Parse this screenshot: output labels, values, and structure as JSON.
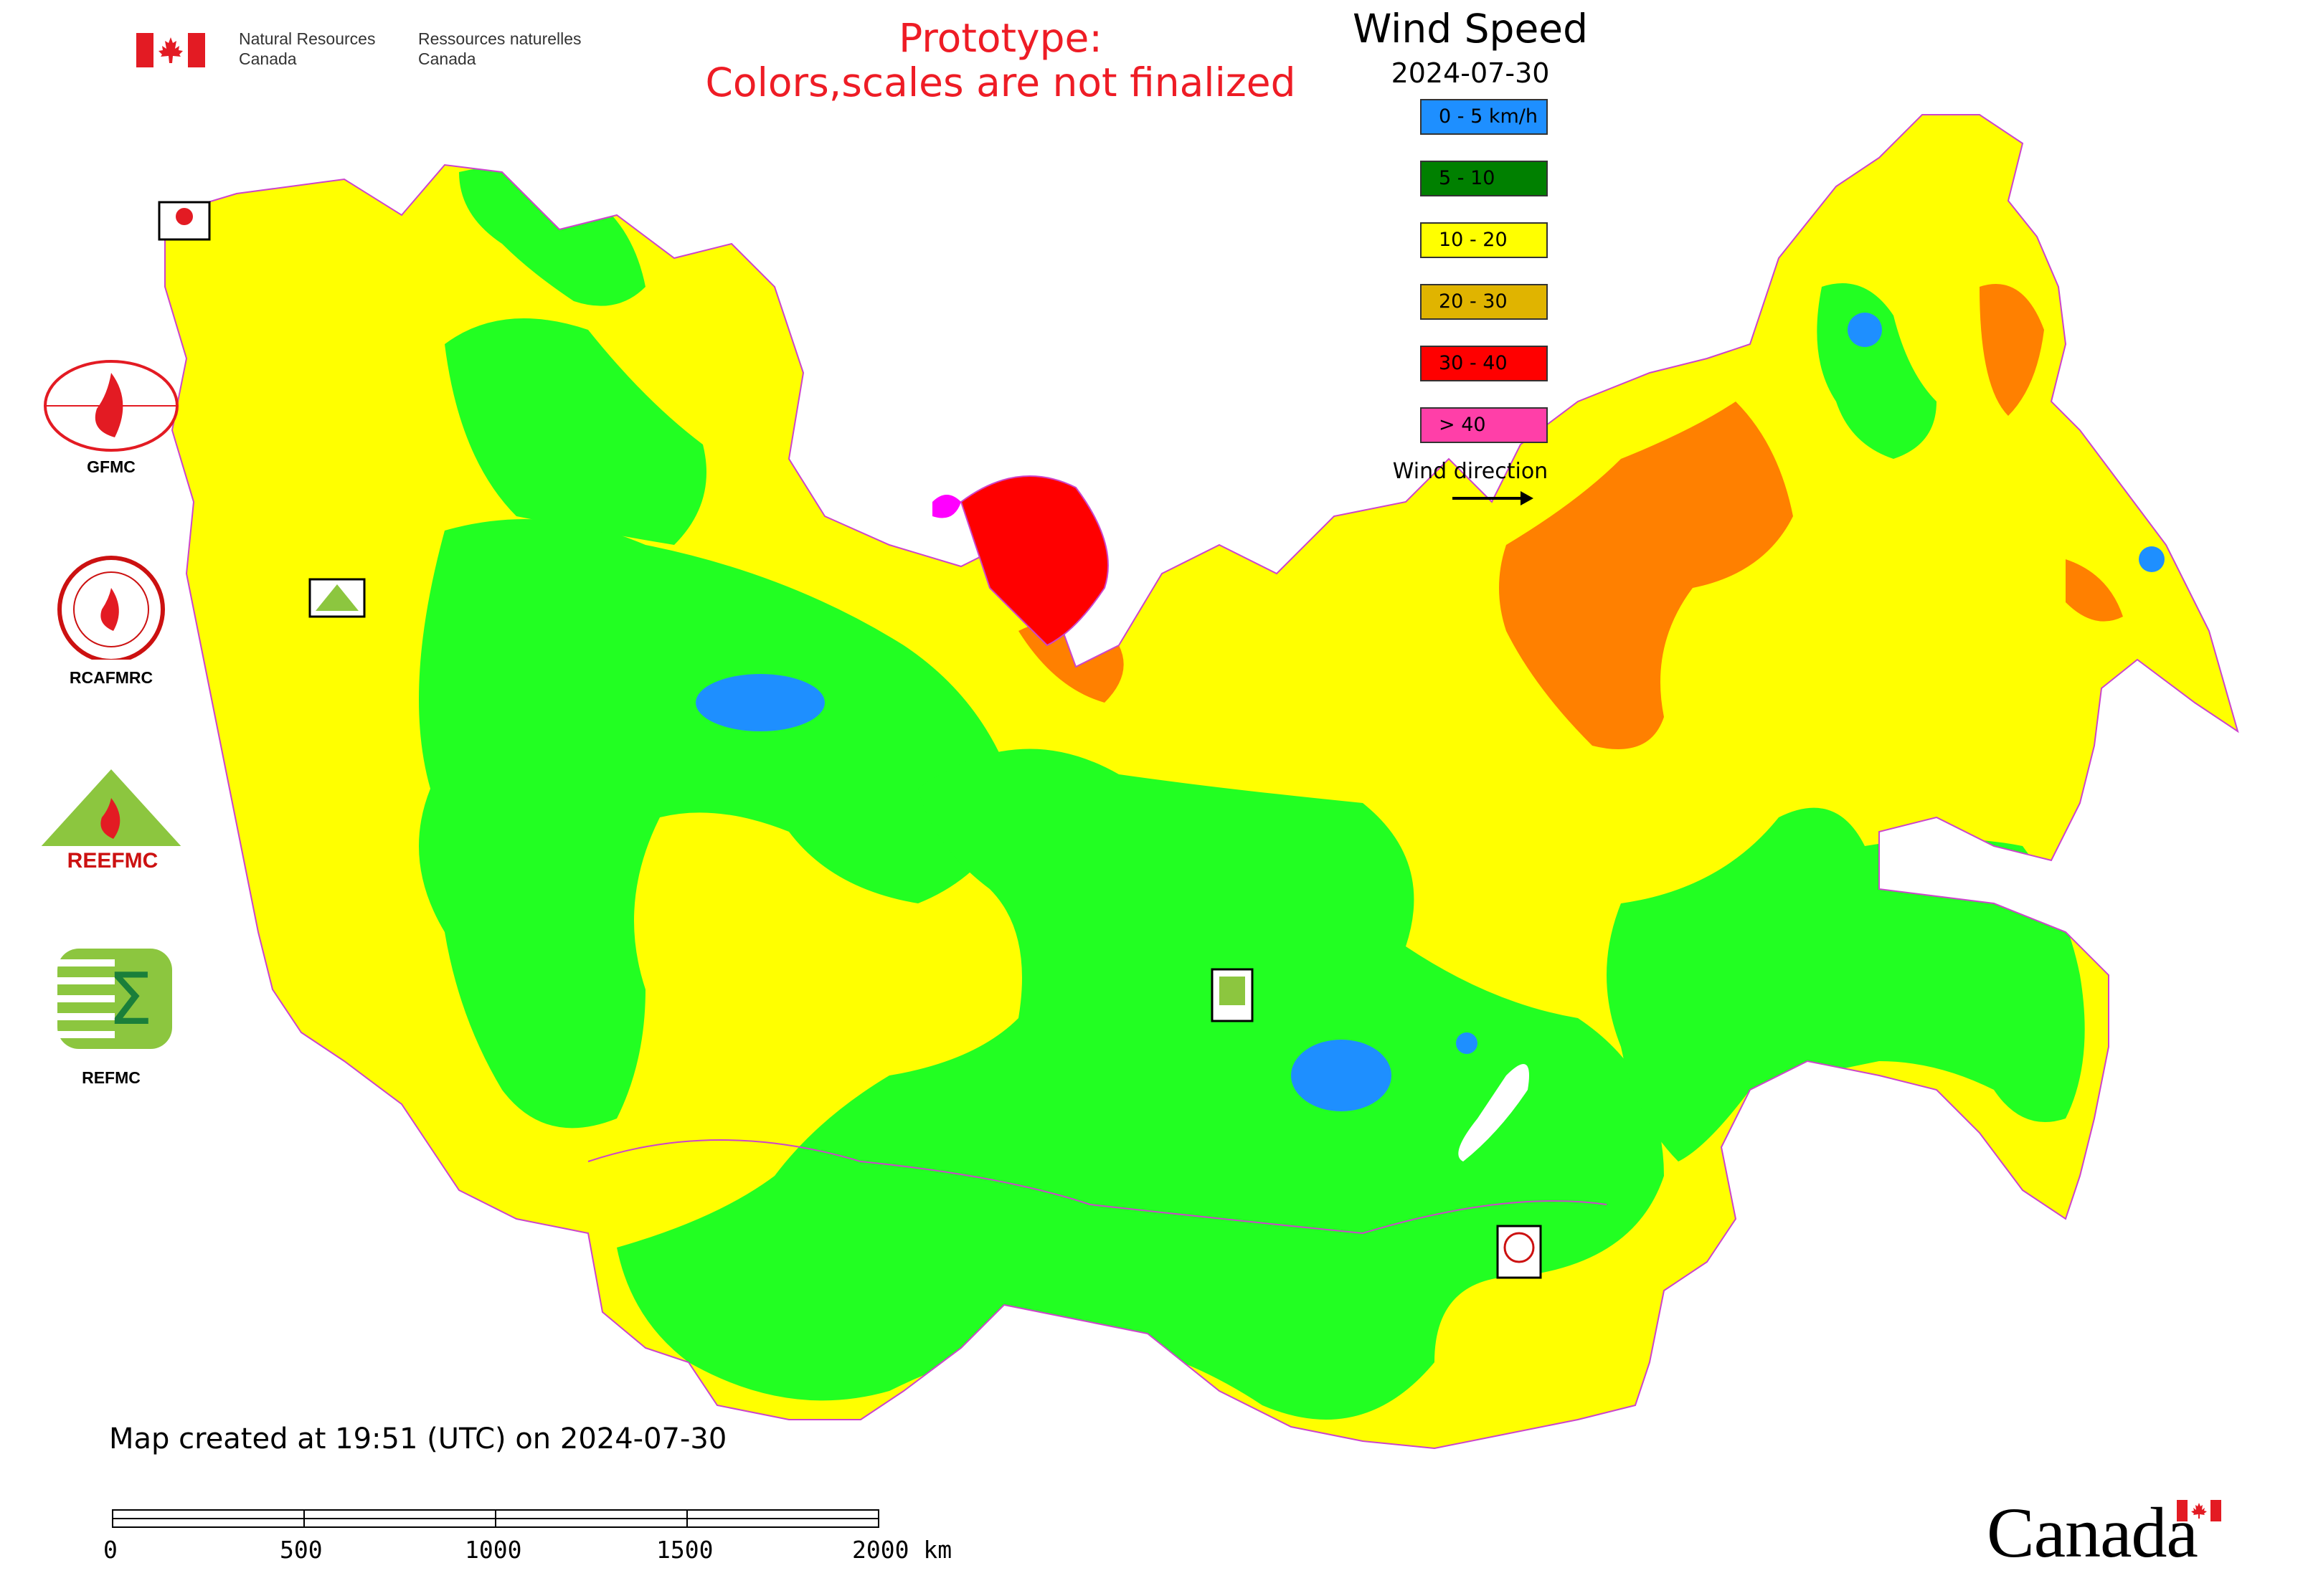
{
  "header": {
    "agency_en_line1": "Natural Resources",
    "agency_en_line2": "Canada",
    "agency_fr_line1": "Ressources naturelles",
    "agency_fr_line2": "Canada",
    "prototype_line1": "Prototype:",
    "prototype_line2": "Colors,scales are not finalized"
  },
  "legend": {
    "title": "Wind Speed",
    "date": "2024-07-30",
    "items": [
      {
        "label": "0 - 5 km/h",
        "color": "#1e8fff"
      },
      {
        "label": "5 - 10",
        "color": "#008000"
      },
      {
        "label": "10 - 20",
        "color": "#ffff00"
      },
      {
        "label": "20 - 30",
        "color": "#e0b400"
      },
      {
        "label": "30 - 40",
        "color": "#ff0000"
      },
      {
        "label": "> 40",
        "color": "#ff3fa8"
      }
    ],
    "wind_direction_label": "Wind direction"
  },
  "map_colors": {
    "light_green": "#22ff22",
    "yellow": "#ffff00",
    "orange": "#ff8000",
    "red": "#ff0000",
    "blue": "#1e8fff",
    "magenta": "#ff00ff",
    "boundary": "#cc44cc"
  },
  "partners": {
    "gfmc": "GFMC",
    "rcafmrc": "RCAFMRC",
    "reefmc_logo_text": "REEFMC",
    "refmc": "REFMC"
  },
  "footer": {
    "map_created": "Map created at 19:51 (UTC) on 2024-07-30",
    "scale_ticks": [
      "0",
      "500",
      "1000",
      "1500",
      "2000 km"
    ],
    "wordmark": "Canada"
  }
}
